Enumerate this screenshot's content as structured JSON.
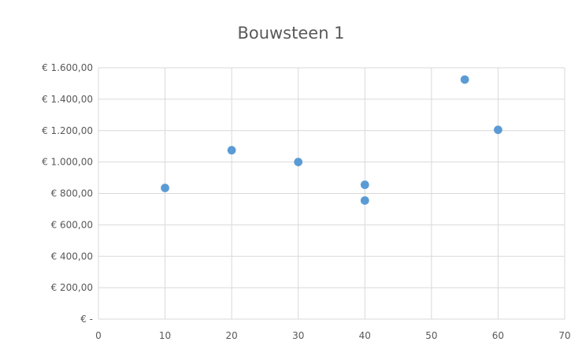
{
  "chart_data": {
    "type": "scatter",
    "title": "Bouwsteen 1",
    "xlabel": "",
    "ylabel": "",
    "xlim": [
      0,
      70
    ],
    "ylim": [
      0,
      1600
    ],
    "x_ticks": [
      "0",
      "10",
      "20",
      "30",
      "40",
      "50",
      "60",
      "70"
    ],
    "x_tick_values": [
      0,
      10,
      20,
      30,
      40,
      50,
      60,
      70
    ],
    "y_ticks": [
      "€ -",
      "€ 200,00",
      "€ 400,00",
      "€ 600,00",
      "€ 800,00",
      "€ 1.000,00",
      "€ 1.200,00",
      "€ 1.400,00",
      "€ 1.600,00"
    ],
    "y_tick_values": [
      0,
      200,
      400,
      600,
      800,
      1000,
      1200,
      1400,
      1600
    ],
    "grid": true,
    "series": [
      {
        "color": "#5B9BD5",
        "points": [
          {
            "x": 10,
            "y": 835
          },
          {
            "x": 20,
            "y": 1075
          },
          {
            "x": 30,
            "y": 1000
          },
          {
            "x": 40,
            "y": 855
          },
          {
            "x": 40,
            "y": 755
          },
          {
            "x": 55,
            "y": 1525
          },
          {
            "x": 60,
            "y": 1205
          }
        ]
      }
    ]
  }
}
